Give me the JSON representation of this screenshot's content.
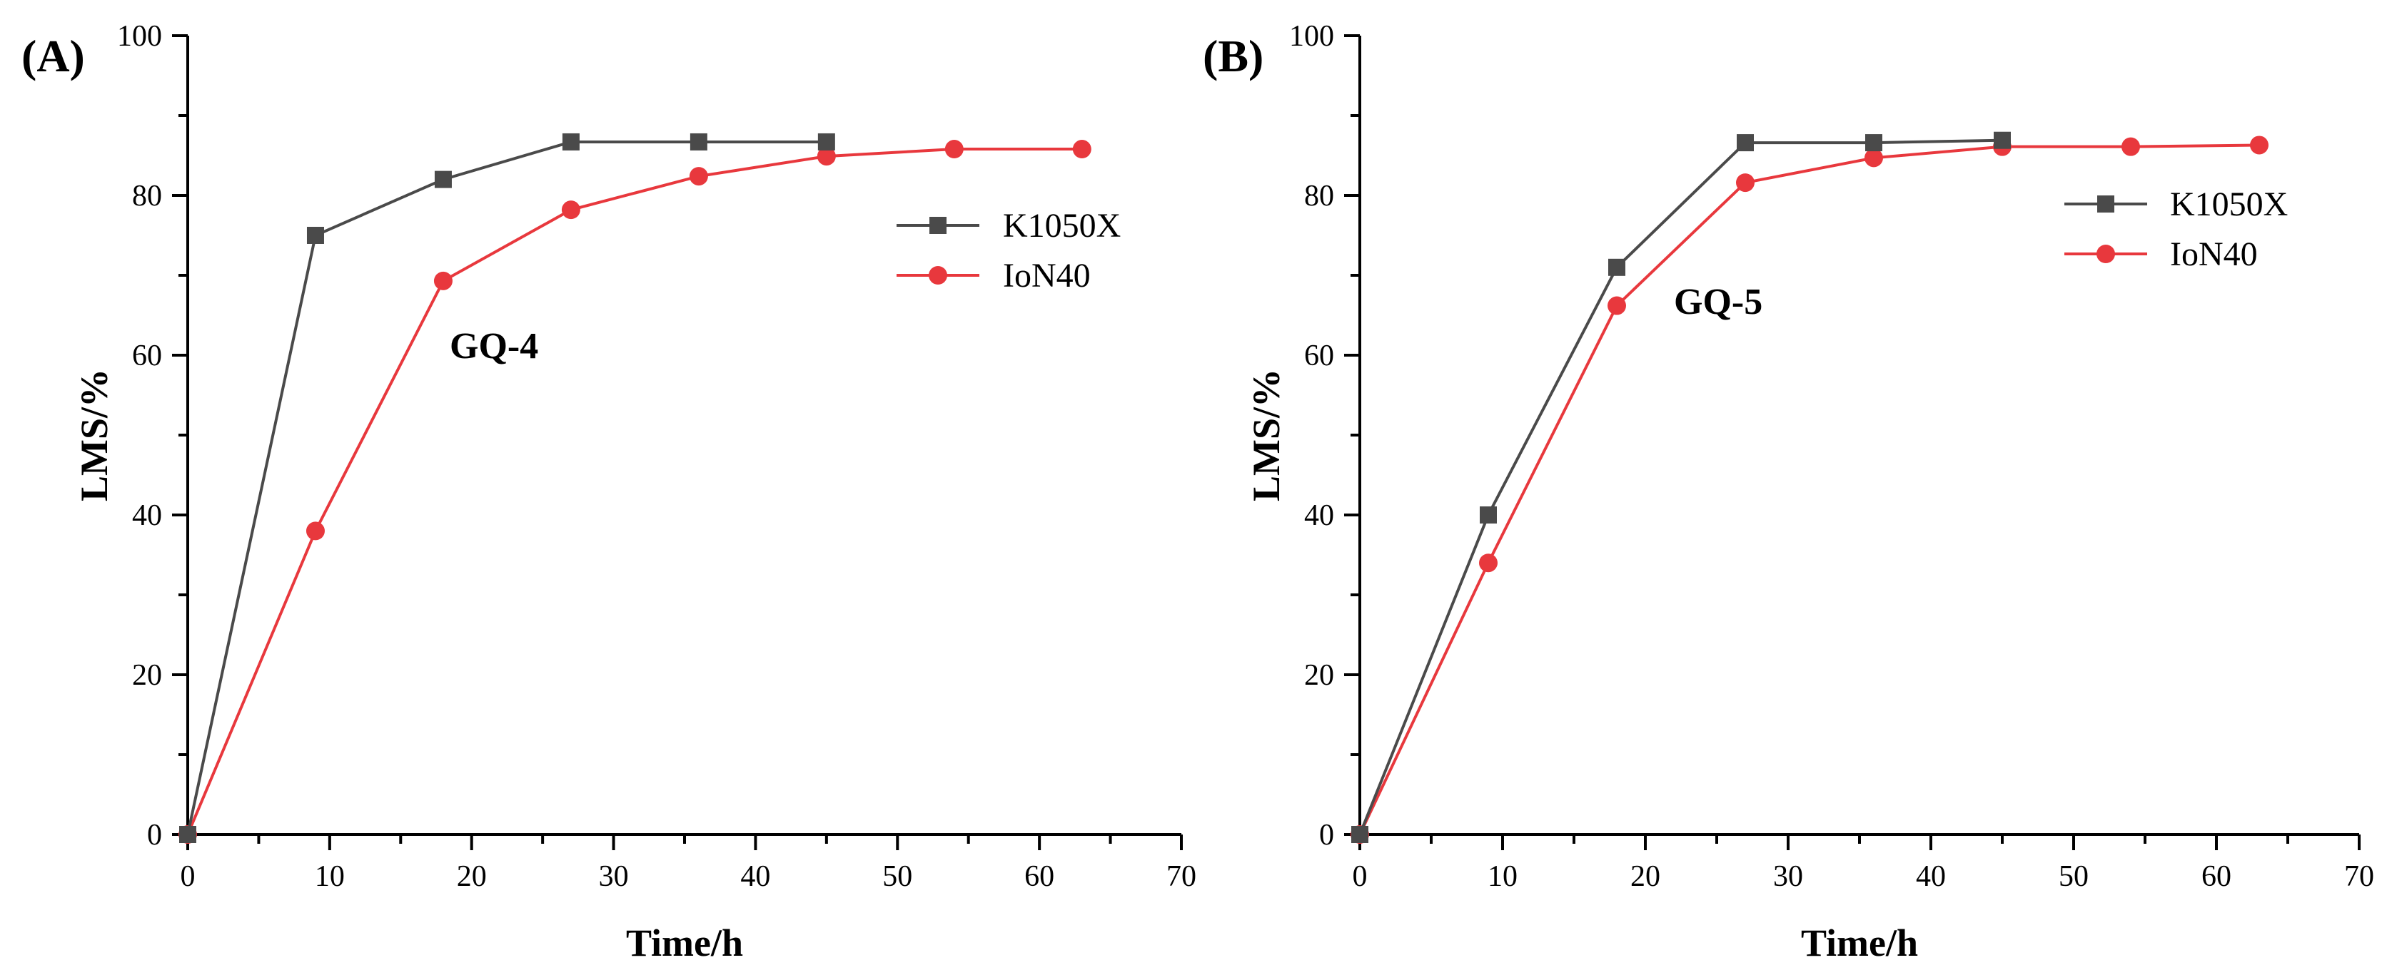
{
  "chart_data": [
    {
      "type": "line",
      "panel_label": "(A)",
      "annotation": "GQ-4",
      "xlabel": "Time/h",
      "ylabel": "LMS/%",
      "xlim": [
        0,
        70
      ],
      "ylim": [
        0,
        100
      ],
      "xticks": [
        0,
        10,
        20,
        30,
        40,
        50,
        60,
        70
      ],
      "yticks": [
        0,
        20,
        40,
        60,
        80,
        100
      ],
      "legend_position": "upper-right",
      "series": [
        {
          "name": "K1050X",
          "color": "#4a4a4a",
          "marker": "square",
          "x": [
            0,
            9,
            18,
            27,
            36,
            45
          ],
          "y": [
            0,
            75,
            82,
            86.7,
            86.7,
            86.7
          ]
        },
        {
          "name": "IoN40",
          "color": "#e8383d",
          "marker": "circle",
          "x": [
            0,
            9,
            18,
            27,
            36,
            45,
            54,
            63
          ],
          "y": [
            0,
            38,
            69.3,
            78.2,
            82.4,
            84.9,
            85.8,
            85.8
          ]
        }
      ]
    },
    {
      "type": "line",
      "panel_label": "(B)",
      "annotation": "GQ-5",
      "xlabel": "Time/h",
      "ylabel": "LMS/%",
      "xlim": [
        0,
        70
      ],
      "ylim": [
        0,
        100
      ],
      "xticks": [
        0,
        10,
        20,
        30,
        40,
        50,
        60,
        70
      ],
      "yticks": [
        0,
        20,
        40,
        60,
        80,
        100
      ],
      "legend_position": "upper-right",
      "series": [
        {
          "name": "K1050X",
          "color": "#4a4a4a",
          "marker": "square",
          "x": [
            0,
            9,
            18,
            27,
            36,
            45
          ],
          "y": [
            0,
            40,
            71,
            86.6,
            86.6,
            86.9
          ]
        },
        {
          "name": "IoN40",
          "color": "#e8383d",
          "marker": "circle",
          "x": [
            0,
            9,
            18,
            27,
            36,
            45,
            54,
            63
          ],
          "y": [
            0,
            34,
            66.2,
            81.6,
            84.7,
            86.1,
            86.1,
            86.3
          ]
        }
      ]
    }
  ]
}
